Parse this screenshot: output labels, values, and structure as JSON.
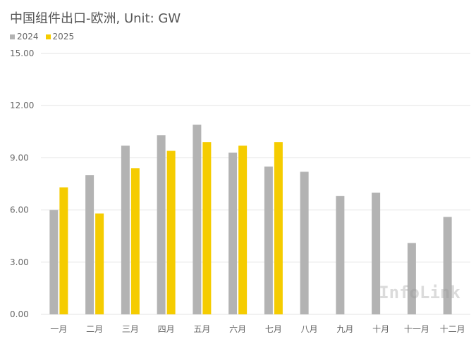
{
  "chart_data": {
    "type": "bar",
    "title": "中国组件出口-欧洲, Unit: GW",
    "categories": [
      "一月",
      "二月",
      "三月",
      "四月",
      "五月",
      "六月",
      "七月",
      "八月",
      "九月",
      "十月",
      "十一月",
      "十二月"
    ],
    "series": [
      {
        "name": "2024",
        "color": "#b3b3b3",
        "values": [
          6.0,
          8.0,
          9.7,
          10.3,
          10.9,
          9.3,
          8.5,
          8.2,
          6.8,
          7.0,
          4.1,
          5.6
        ]
      },
      {
        "name": "2025",
        "color": "#f5cc00",
        "values": [
          7.3,
          5.8,
          8.4,
          9.4,
          9.9,
          9.7,
          9.9,
          null,
          null,
          null,
          null,
          null
        ]
      }
    ],
    "yticks": [
      "0.00",
      "3.00",
      "6.00",
      "9.00",
      "12.00",
      "15.00"
    ],
    "ylim": [
      0,
      15
    ],
    "grid": true,
    "legend": "top-left",
    "xlabel": "",
    "ylabel": ""
  },
  "watermark": "InfoLink"
}
